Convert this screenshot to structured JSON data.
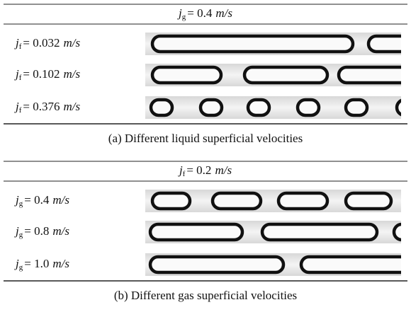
{
  "panels": [
    {
      "header": {
        "symbol": "j",
        "subscript": "g",
        "value": "= 0.4",
        "unit": "m/s"
      },
      "rows": [
        {
          "symbol": "j",
          "subscript": "f",
          "value": "= 0.032",
          "unit": "m/s"
        },
        {
          "symbol": "j",
          "subscript": "f",
          "value": "= 0.102",
          "unit": "m/s"
        },
        {
          "symbol": "j",
          "subscript": "f",
          "value": "= 0.376",
          "unit": "m/s"
        }
      ],
      "caption": "(a)  Different  liquid  superficial  velocities"
    },
    {
      "header": {
        "symbol": "j",
        "subscript": "f",
        "value": "= 0.2",
        "unit": "m/s"
      },
      "rows": [
        {
          "symbol": "j",
          "subscript": "g",
          "value": "= 0.4",
          "unit": "m/s"
        },
        {
          "symbol": "j",
          "subscript": "g",
          "value": "= 0.8",
          "unit": "m/s"
        },
        {
          "symbol": "j",
          "subscript": "g",
          "value": "= 1.0",
          "unit": "m/s"
        }
      ],
      "caption": "(b)  Different  gas  superficial  velocities"
    }
  ]
}
